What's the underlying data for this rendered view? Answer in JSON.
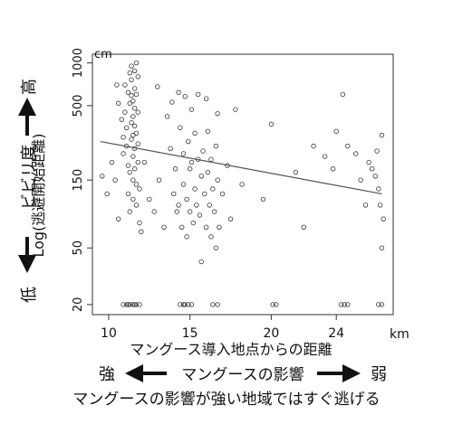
{
  "chart_data": {
    "type": "scatter",
    "title": "",
    "xlabel": "マングース導入地点からの距離",
    "x_unit": "km",
    "x_ticks": [
      10,
      15,
      20,
      24
    ],
    "xlim": [
      9.0,
      27.5
    ],
    "ylabel": "Log(逃避開始距離)",
    "y_unit": "cm",
    "y_scale": "log",
    "y_ticks": [
      20,
      50,
      150,
      500,
      1000
    ],
    "y_tick_labels": [
      "20",
      "50",
      "150",
      "500",
      "1000"
    ],
    "ylim": [
      17,
      1150
    ],
    "grid": false,
    "trend_line": {
      "x": [
        9.5,
        26.8
      ],
      "y": [
        280,
        120
      ]
    },
    "points": [
      [
        9.6,
        160
      ],
      [
        9.9,
        120
      ],
      [
        10.2,
        200
      ],
      [
        10.4,
        150
      ],
      [
        10.5,
        700
      ],
      [
        10.6,
        80
      ],
      [
        10.6,
        520
      ],
      [
        10.8,
        400
      ],
      [
        10.9,
        300
      ],
      [
        10.9,
        230
      ],
      [
        11.0,
        700
      ],
      [
        11.0,
        450
      ],
      [
        11.1,
        350
      ],
      [
        11.1,
        260
      ],
      [
        11.2,
        190
      ],
      [
        11.2,
        620
      ],
      [
        11.2,
        120
      ],
      [
        11.3,
        850
      ],
      [
        11.3,
        520
      ],
      [
        11.3,
        170
      ],
      [
        11.3,
        90
      ],
      [
        11.4,
        950
      ],
      [
        11.4,
        760
      ],
      [
        11.4,
        590
      ],
      [
        11.4,
        380
      ],
      [
        11.4,
        290
      ],
      [
        11.5,
        540
      ],
      [
        11.5,
        420
      ],
      [
        11.5,
        310
      ],
      [
        11.5,
        220
      ],
      [
        11.5,
        150
      ],
      [
        11.5,
        110
      ],
      [
        11.6,
        880
      ],
      [
        11.6,
        660
      ],
      [
        11.6,
        480
      ],
      [
        11.6,
        360
      ],
      [
        11.6,
        250
      ],
      [
        11.6,
        180
      ],
      [
        11.7,
        1000
      ],
      [
        11.7,
        600
      ],
      [
        11.7,
        320
      ],
      [
        11.7,
        140
      ],
      [
        11.7,
        100
      ],
      [
        11.8,
        800
      ],
      [
        11.8,
        450
      ],
      [
        11.8,
        270
      ],
      [
        11.8,
        200
      ],
      [
        11.9,
        130
      ],
      [
        11.9,
        75
      ],
      [
        12.0,
        65
      ],
      [
        12.2,
        200
      ],
      [
        12.5,
        110
      ],
      [
        12.8,
        90
      ],
      [
        13.0,
        680
      ],
      [
        13.1,
        150
      ],
      [
        13.4,
        70
      ],
      [
        13.6,
        420
      ],
      [
        13.8,
        250
      ],
      [
        13.9,
        530
      ],
      [
        14.0,
        120
      ],
      [
        14.1,
        180
      ],
      [
        14.2,
        90
      ],
      [
        14.3,
        620
      ],
      [
        14.3,
        100
      ],
      [
        14.4,
        350
      ],
      [
        14.5,
        70
      ],
      [
        14.6,
        230
      ],
      [
        14.6,
        140
      ],
      [
        14.7,
        580
      ],
      [
        14.8,
        110
      ],
      [
        14.8,
        60
      ],
      [
        14.9,
        280
      ],
      [
        15.0,
        180
      ],
      [
        15.0,
        90
      ],
      [
        15.1,
        470
      ],
      [
        15.1,
        200
      ],
      [
        15.2,
        75
      ],
      [
        15.3,
        130
      ],
      [
        15.3,
        320
      ],
      [
        15.4,
        100
      ],
      [
        15.5,
        600
      ],
      [
        15.5,
        210
      ],
      [
        15.6,
        85
      ],
      [
        15.7,
        160
      ],
      [
        15.7,
        40
      ],
      [
        15.8,
        240
      ],
      [
        15.9,
        120
      ],
      [
        16.0,
        70
      ],
      [
        16.0,
        560
      ],
      [
        16.1,
        330
      ],
      [
        16.1,
        170
      ],
      [
        16.2,
        100
      ],
      [
        16.3,
        210
      ],
      [
        16.3,
        60
      ],
      [
        16.4,
        130
      ],
      [
        16.5,
        90
      ],
      [
        16.6,
        260
      ],
      [
        16.6,
        50
      ],
      [
        16.7,
        440
      ],
      [
        16.7,
        150
      ],
      [
        16.8,
        70
      ],
      [
        17.0,
        120
      ],
      [
        17.3,
        190
      ],
      [
        17.5,
        80
      ],
      [
        17.8,
        470
      ],
      [
        18.2,
        140
      ],
      [
        19.5,
        110
      ],
      [
        20.0,
        370
      ],
      [
        21.5,
        170
      ],
      [
        22.0,
        70
      ],
      [
        22.6,
        260
      ],
      [
        23.3,
        220
      ],
      [
        23.8,
        180
      ],
      [
        24.0,
        330
      ],
      [
        24.4,
        600
      ],
      [
        24.7,
        260
      ],
      [
        25.2,
        230
      ],
      [
        25.5,
        150
      ],
      [
        25.8,
        100
      ],
      [
        26.0,
        200
      ],
      [
        26.2,
        180
      ],
      [
        26.4,
        160
      ],
      [
        26.5,
        240
      ],
      [
        26.6,
        130
      ],
      [
        26.7,
        100
      ],
      [
        26.8,
        310
      ],
      [
        26.8,
        50
      ],
      [
        26.9,
        80
      ],
      [
        10.9,
        20
      ],
      [
        11.1,
        20
      ],
      [
        11.2,
        20
      ],
      [
        11.3,
        20
      ],
      [
        11.5,
        20
      ],
      [
        11.6,
        20
      ],
      [
        11.7,
        20
      ],
      [
        11.9,
        20
      ],
      [
        14.4,
        20
      ],
      [
        14.6,
        20
      ],
      [
        14.7,
        20
      ],
      [
        14.9,
        20
      ],
      [
        15.1,
        20
      ],
      [
        16.4,
        20
      ],
      [
        16.7,
        20
      ],
      [
        20.1,
        20
      ],
      [
        20.3,
        20
      ],
      [
        24.3,
        20
      ],
      [
        24.5,
        20
      ],
      [
        24.7,
        20
      ],
      [
        26.6,
        20
      ],
      [
        26.8,
        20
      ]
    ]
  },
  "annotations": {
    "left_high": "高",
    "left_title": "ビビリ度",
    "left_low": "低",
    "bottom_strong": "強",
    "bottom_middle": "マングースの影響",
    "bottom_weak": "弱",
    "caption": "マングースの影響が強い地域ではすぐ逃げる"
  }
}
